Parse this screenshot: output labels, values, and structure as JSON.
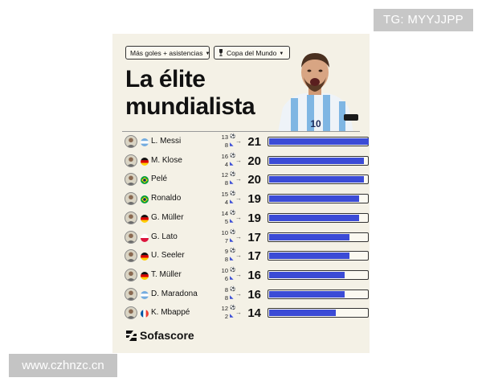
{
  "watermarks": {
    "top": "TG: MYYJJPP",
    "bottom": "www.czhnzc.cn"
  },
  "filters": {
    "metric": "Más goles + asistencias",
    "competition": "Copa del Mundo"
  },
  "headline": {
    "line1": "La élite",
    "line2": "mundialista"
  },
  "brand": "Sofascore",
  "scale_max": 21,
  "players": [
    {
      "name": "L. Messi",
      "flag": "argentina",
      "goals": "13",
      "assists": "8",
      "total": "21",
      "fill": 21
    },
    {
      "name": "M. Klose",
      "flag": "germany",
      "goals": "16",
      "assists": "4",
      "total": "20",
      "fill": 20
    },
    {
      "name": "Pelé",
      "flag": "brazil",
      "goals": "12",
      "assists": "8",
      "total": "20",
      "fill": 20
    },
    {
      "name": "Ronaldo",
      "flag": "brazil",
      "goals": "15",
      "assists": "4",
      "total": "19",
      "fill": 19
    },
    {
      "name": "G. Müller",
      "flag": "germany",
      "goals": "14",
      "assists": "5",
      "total": "19",
      "fill": 19
    },
    {
      "name": "G. Lato",
      "flag": "poland",
      "goals": "10",
      "assists": "7",
      "total": "17",
      "fill": 17
    },
    {
      "name": "U. Seeler",
      "flag": "germany",
      "goals": "9",
      "assists": "8",
      "total": "17",
      "fill": 17
    },
    {
      "name": "T. Müller",
      "flag": "germany",
      "goals": "10",
      "assists": "6",
      "total": "16",
      "fill": 16
    },
    {
      "name": "D. Maradona",
      "flag": "argentina",
      "goals": "8",
      "assists": "8",
      "total": "16",
      "fill": 16
    },
    {
      "name": "K. Mbappé",
      "flag": "france",
      "goals": "12",
      "assists": "2",
      "total": "14",
      "fill": 14
    }
  ],
  "colors": {
    "bar": "#3b4bd6",
    "card": "#f4f1e6"
  }
}
